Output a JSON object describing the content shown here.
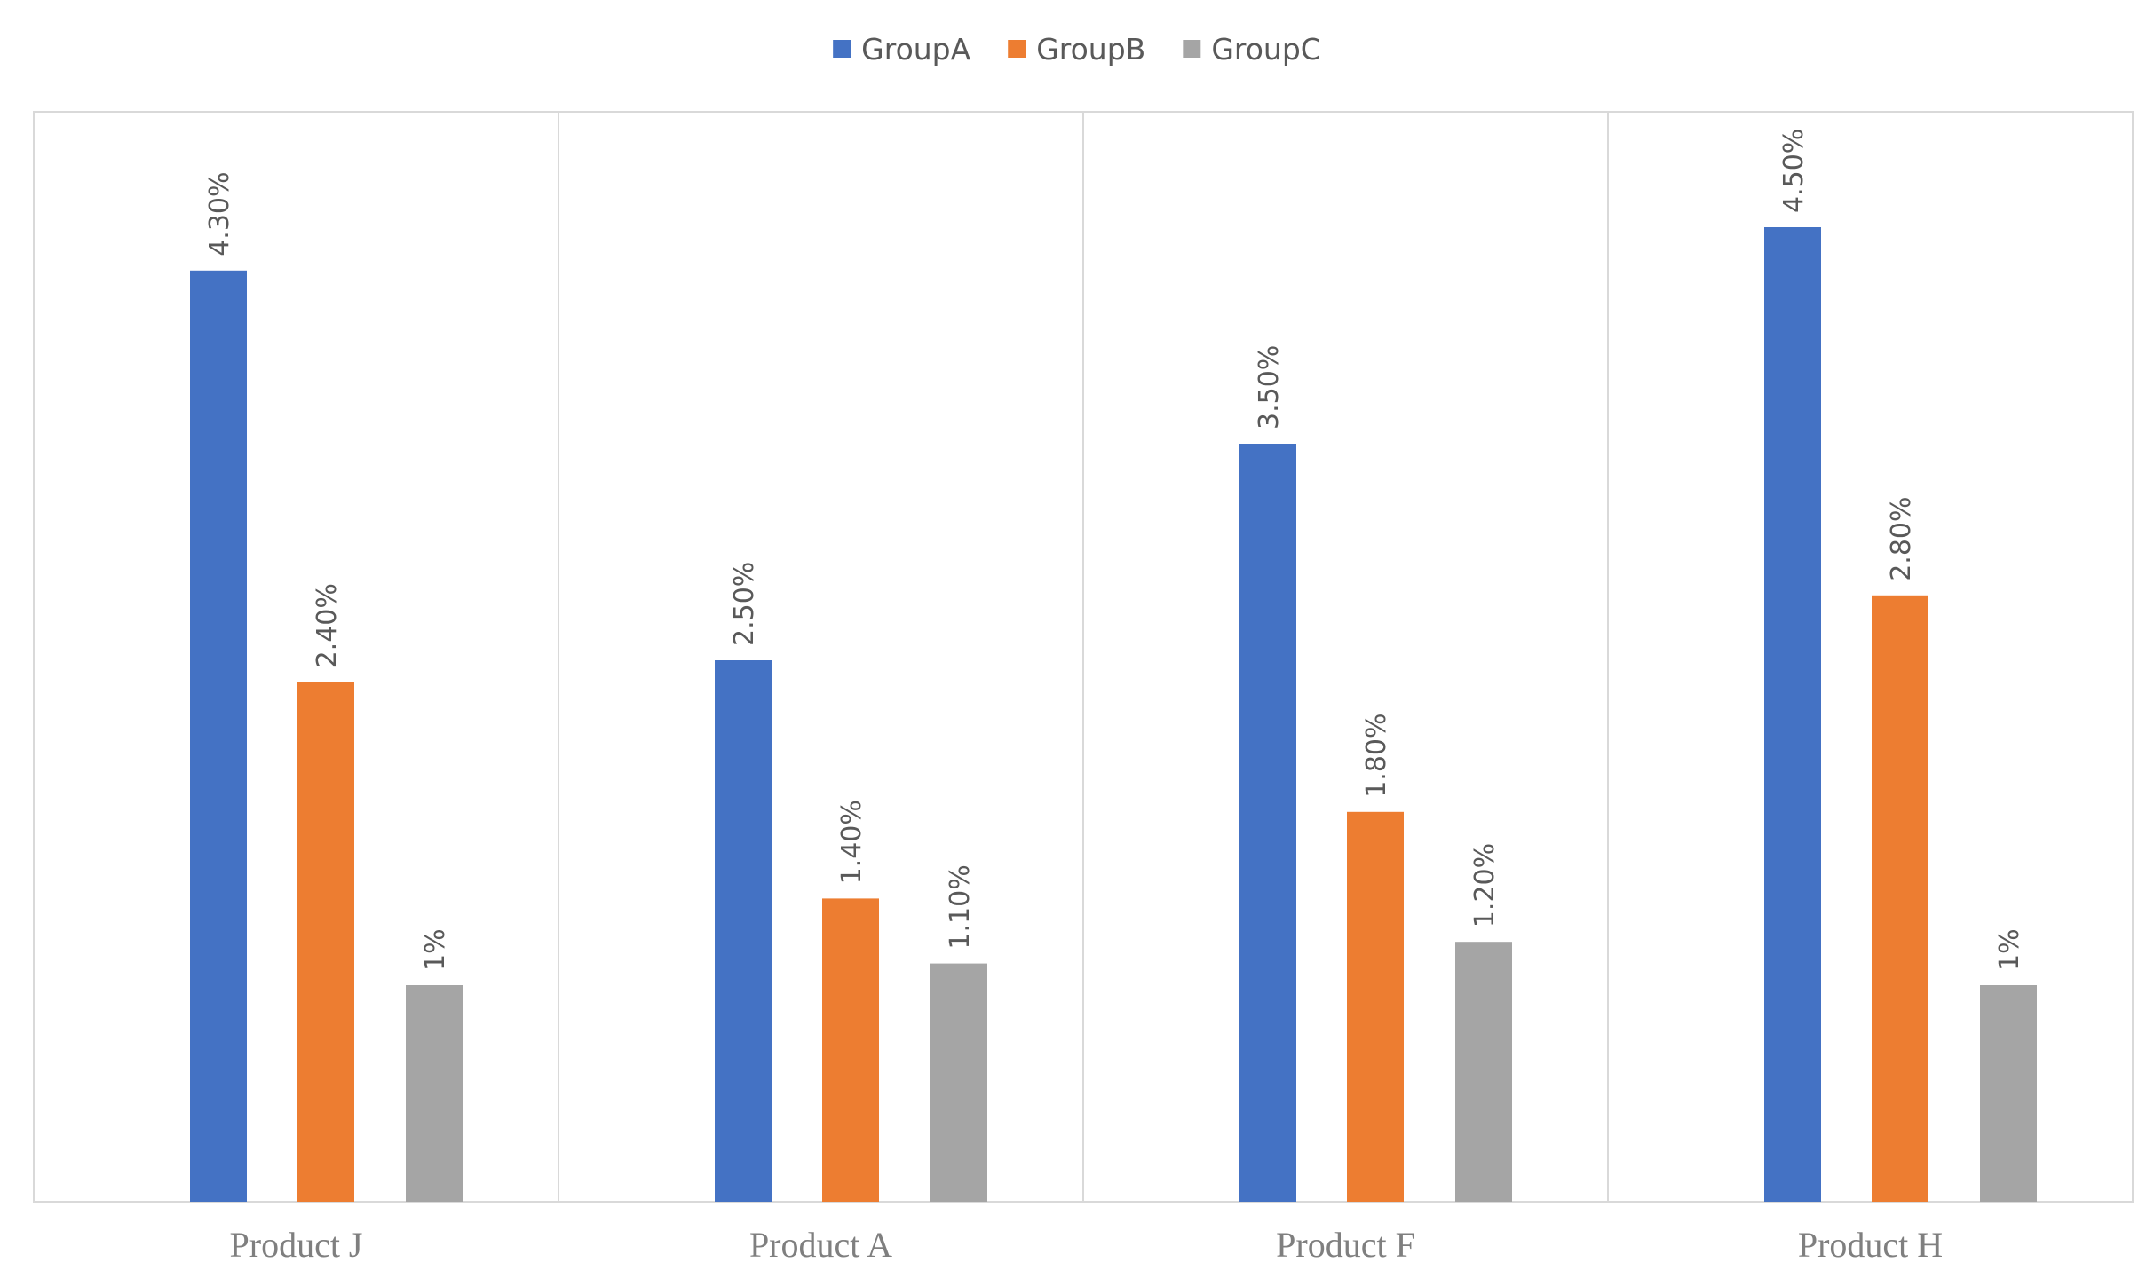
{
  "chart_data": {
    "type": "bar",
    "title": "",
    "xlabel": "",
    "ylabel": "",
    "ylim": [
      0,
      5
    ],
    "categories": [
      "Product J",
      "Product A",
      "Product F",
      "Product H"
    ],
    "series": [
      {
        "name": "GroupA",
        "color": "#4472C4",
        "values": [
          4.3,
          2.5,
          3.5,
          4.5
        ],
        "labels": [
          "4.30%",
          "2.50%",
          "3.50%",
          "4.50%"
        ]
      },
      {
        "name": "GroupB",
        "color": "#ED7D31",
        "values": [
          2.4,
          1.4,
          1.8,
          2.8
        ],
        "labels": [
          "2.40%",
          "1.40%",
          "1.80%",
          "2.80%"
        ]
      },
      {
        "name": "GroupC",
        "color": "#A5A5A5",
        "values": [
          1.0,
          1.1,
          1.2,
          1.0
        ],
        "labels": [
          "1%",
          "1.10%",
          "1.20%",
          "1%"
        ]
      }
    ],
    "legend": "top-center",
    "grid": false,
    "category_dividers": true
  }
}
